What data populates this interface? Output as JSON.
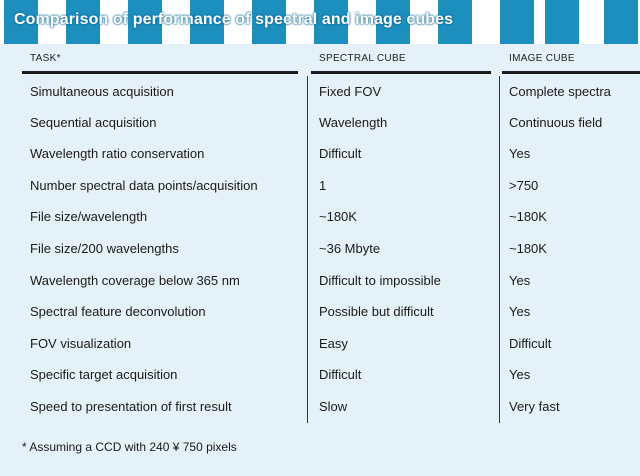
{
  "title": "Comparison of performance of spectral and image cubes",
  "columns": [
    "TASK*",
    "SPECTRAL CUBE",
    "IMAGE CUBE"
  ],
  "rows": [
    [
      "Simultaneous acquisition",
      "Fixed FOV",
      "Complete spectra"
    ],
    [
      "Sequential acquisition",
      "Wavelength",
      "Continuous field"
    ],
    [
      "Wavelength ratio conservation",
      "Difficult",
      "Yes"
    ],
    [
      "Number spectral data points/acquisition",
      "1",
      ">750"
    ],
    [
      "File size/wavelength",
      "~180K",
      "~180K"
    ],
    [
      "File size/200 wavelengths",
      "~36 Mbyte",
      "~180K"
    ],
    [
      "Wavelength coverage below 365 nm",
      "Difficult to impossible",
      "Yes"
    ],
    [
      "Spectral feature deconvolution",
      "Possible but difficult",
      "Yes"
    ],
    [
      "FOV visualization",
      "Easy",
      "Difficult"
    ],
    [
      "Specific target acquisition",
      "Difficult",
      "Yes"
    ],
    [
      "Speed to presentation of first result",
      "Slow",
      "Very fast"
    ]
  ],
  "footnote": "* Assuming a CCD with 240 ¥ 750 pixels",
  "colors": {
    "banner_accent": "#1d8fbe",
    "panel_background": "#e5f1f8",
    "text": "#1a1a1a"
  }
}
